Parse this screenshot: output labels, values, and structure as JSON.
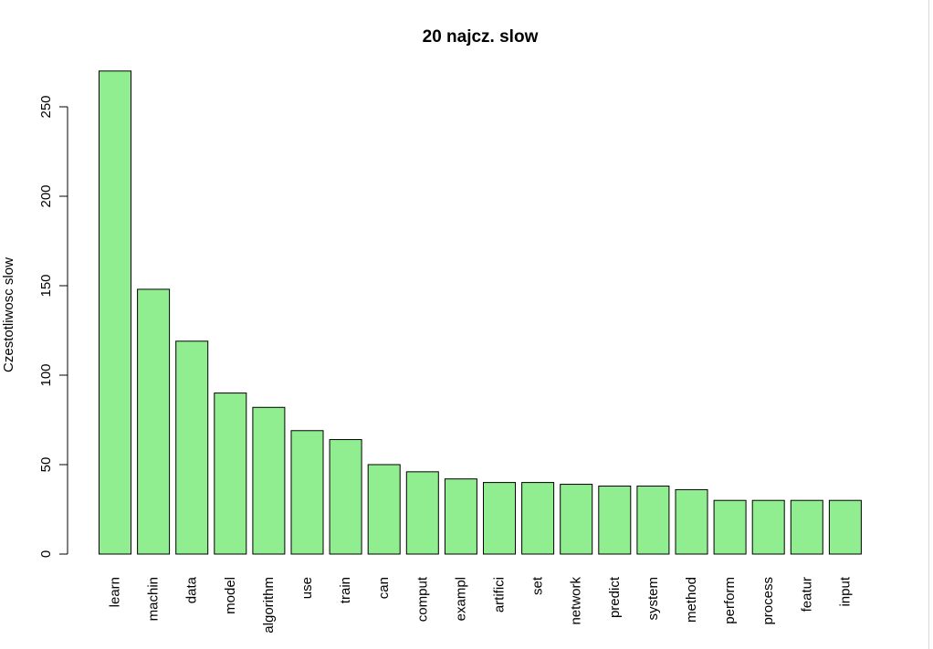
{
  "chart_data": {
    "type": "bar",
    "title": "20 najcz. slow",
    "xlabel": "",
    "ylabel": "Czestotliwosc slow",
    "ylim": [
      0,
      280
    ],
    "yticks": [
      0,
      50,
      100,
      150,
      200,
      250
    ],
    "categories": [
      "learn",
      "machin",
      "data",
      "model",
      "algorithm",
      "use",
      "train",
      "can",
      "comput",
      "exampl",
      "artifici",
      "set",
      "network",
      "predict",
      "system",
      "method",
      "perform",
      "process",
      "featur",
      "input"
    ],
    "values": [
      270,
      148,
      119,
      90,
      82,
      69,
      64,
      50,
      46,
      42,
      40,
      40,
      39,
      38,
      38,
      36,
      30,
      30,
      30,
      30
    ],
    "bar_color": "#90ee90",
    "bar_border": "#000000",
    "grid": false,
    "legend": "none"
  }
}
